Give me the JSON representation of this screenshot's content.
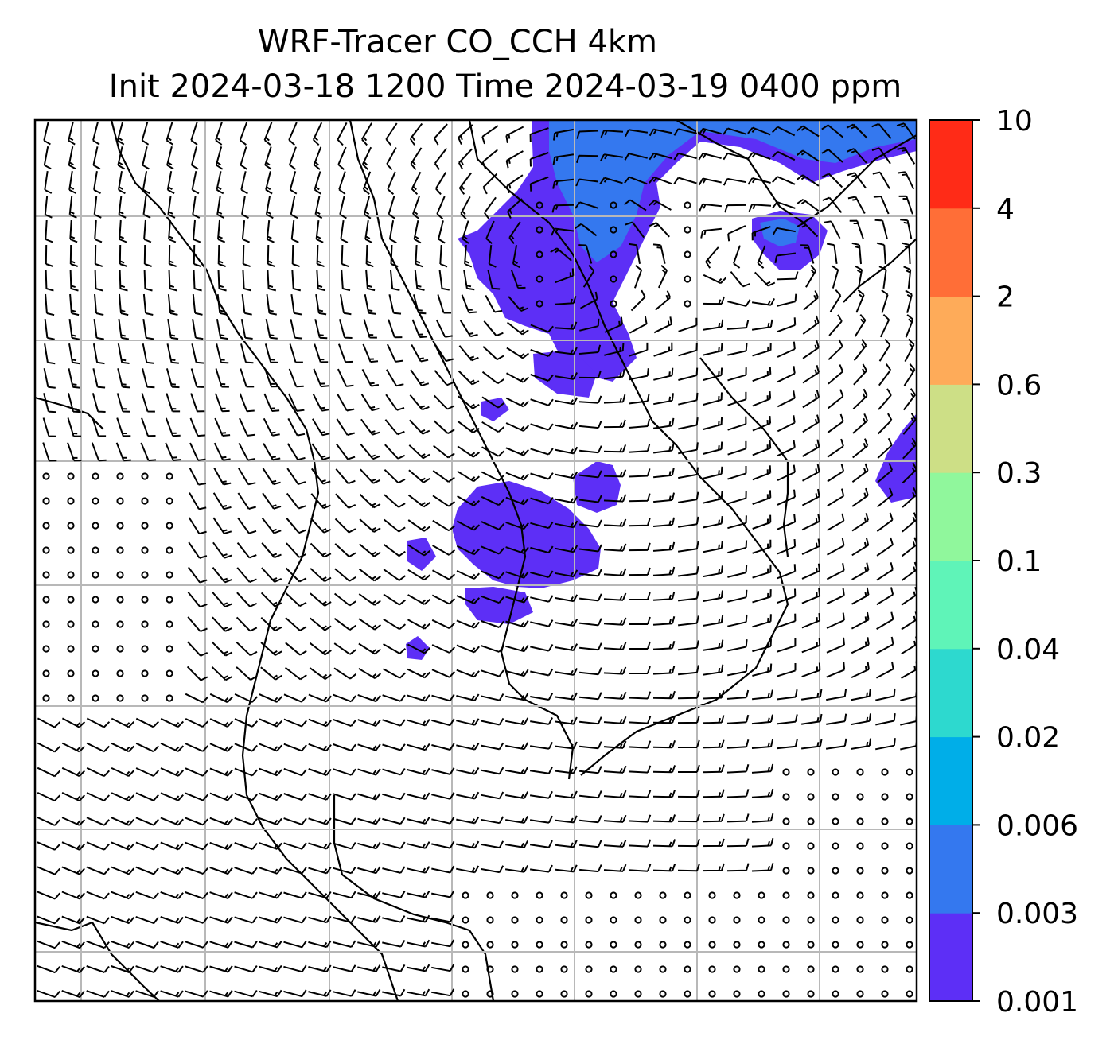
{
  "title": {
    "line1": "WRF-Tracer CO_CCH 4km",
    "line2": "Init 2024-03-18 1200 Time 2024-03-19 0400 ppm"
  },
  "colorbar": {
    "ticks": [
      "0.001",
      "0.003",
      "0.006",
      "0.02",
      "0.04",
      "0.1",
      "0.3",
      "0.6",
      "2",
      "4",
      "10"
    ],
    "colors": [
      "#5d2ff6",
      "#3478ef",
      "#00aee8",
      "#2dd9cf",
      "#5ff4b8",
      "#90f79c",
      "#cddf86",
      "#feab59",
      "#ff6e37",
      "#ff2b17"
    ]
  },
  "map": {
    "concentration_color": "#5d2ff6",
    "concentration_color_high": "#3478ef",
    "grid_color": "#b8b8b8",
    "coast_color": "#000000",
    "barb_color": "#000000"
  }
}
